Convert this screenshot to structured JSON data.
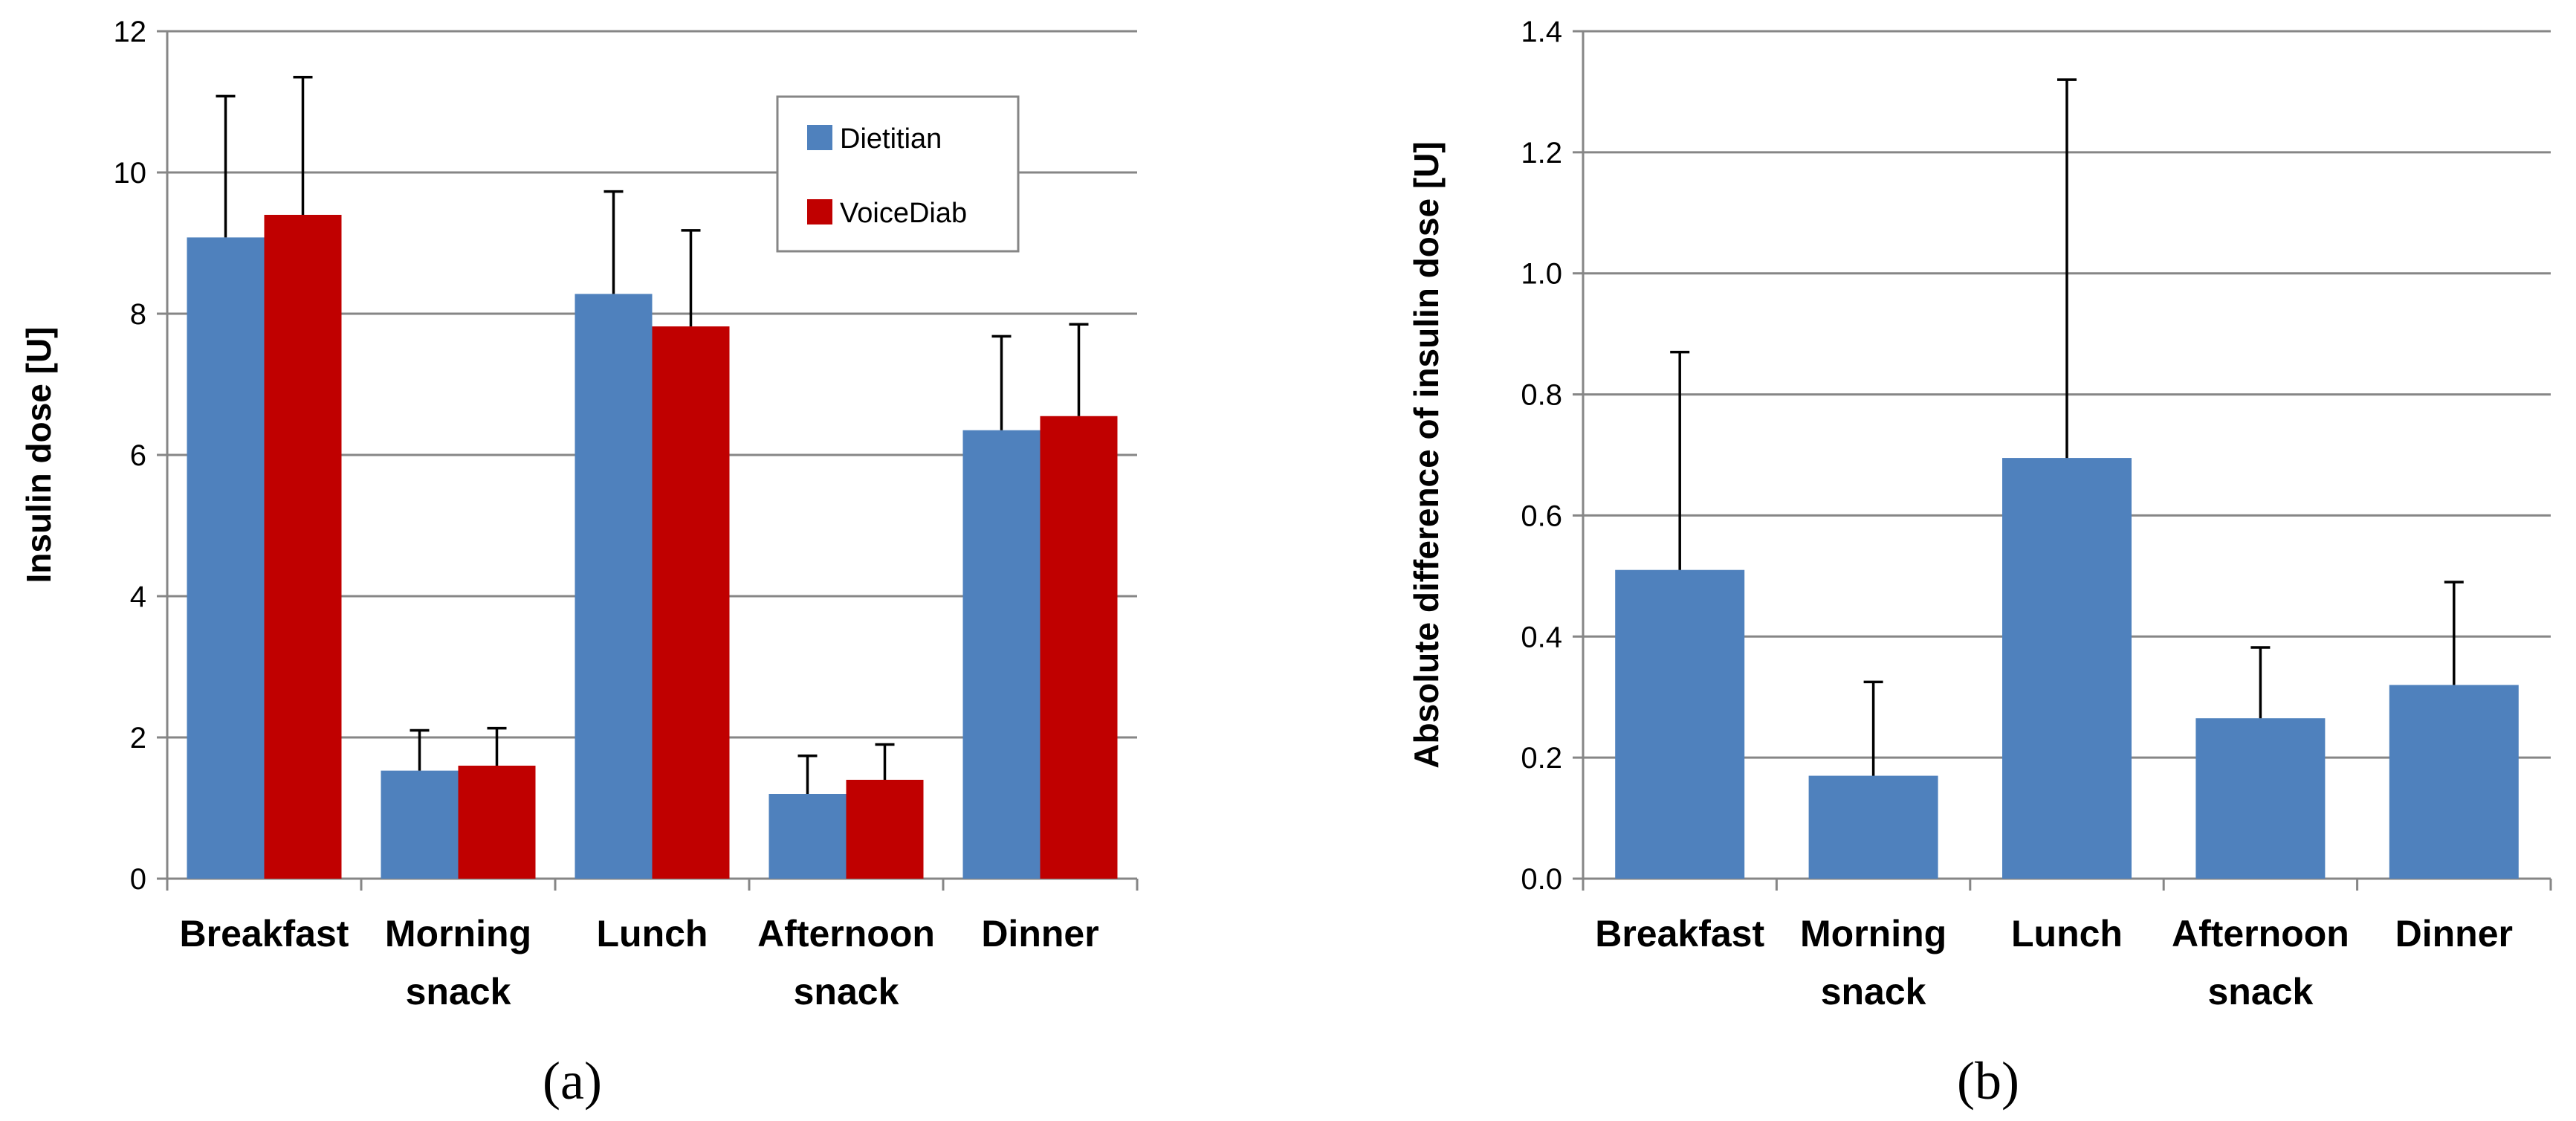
{
  "colors": {
    "dietitian": "#4f81bd",
    "voicediab": "#c00000",
    "grid": "#868686"
  },
  "chart_data": [
    {
      "type": "bar",
      "panel": "(a)",
      "ylabel": "Insulin dose [U]",
      "ylim": [
        0,
        12
      ],
      "yticks": [
        "0",
        "2",
        "4",
        "6",
        "8",
        "10",
        "12"
      ],
      "categories": [
        [
          "Breakfast"
        ],
        [
          "Morning",
          "snack"
        ],
        [
          "Lunch"
        ],
        [
          "Afternoon",
          "snack"
        ],
        [
          "Dinner"
        ]
      ],
      "legend_position": "top-right",
      "series": [
        {
          "name": "Dietitian",
          "values": [
            9.08,
            1.53,
            8.28,
            1.2,
            6.35
          ],
          "errors": [
            2.0,
            0.57,
            1.45,
            0.54,
            1.33
          ]
        },
        {
          "name": "VoiceDiab",
          "values": [
            9.4,
            1.6,
            7.82,
            1.4,
            6.55
          ],
          "errors": [
            1.95,
            0.53,
            1.36,
            0.5,
            1.3
          ]
        }
      ]
    },
    {
      "type": "bar",
      "panel": "(b)",
      "ylabel": "Absolute difference of insulin dose [U]",
      "ylim": [
        0,
        1.4
      ],
      "yticks": [
        "0.0",
        "0.2",
        "0.4",
        "0.6",
        "0.8",
        "1.0",
        "1.2",
        "1.4"
      ],
      "categories": [
        [
          "Breakfast"
        ],
        [
          "Morning",
          "snack"
        ],
        [
          "Lunch"
        ],
        [
          "Afternoon",
          "snack"
        ],
        [
          "Dinner"
        ]
      ],
      "series": [
        {
          "name": "Absolute difference",
          "values": [
            0.51,
            0.17,
            0.695,
            0.265,
            0.32
          ],
          "errors": [
            0.36,
            0.155,
            0.625,
            0.117,
            0.17
          ]
        }
      ]
    }
  ]
}
